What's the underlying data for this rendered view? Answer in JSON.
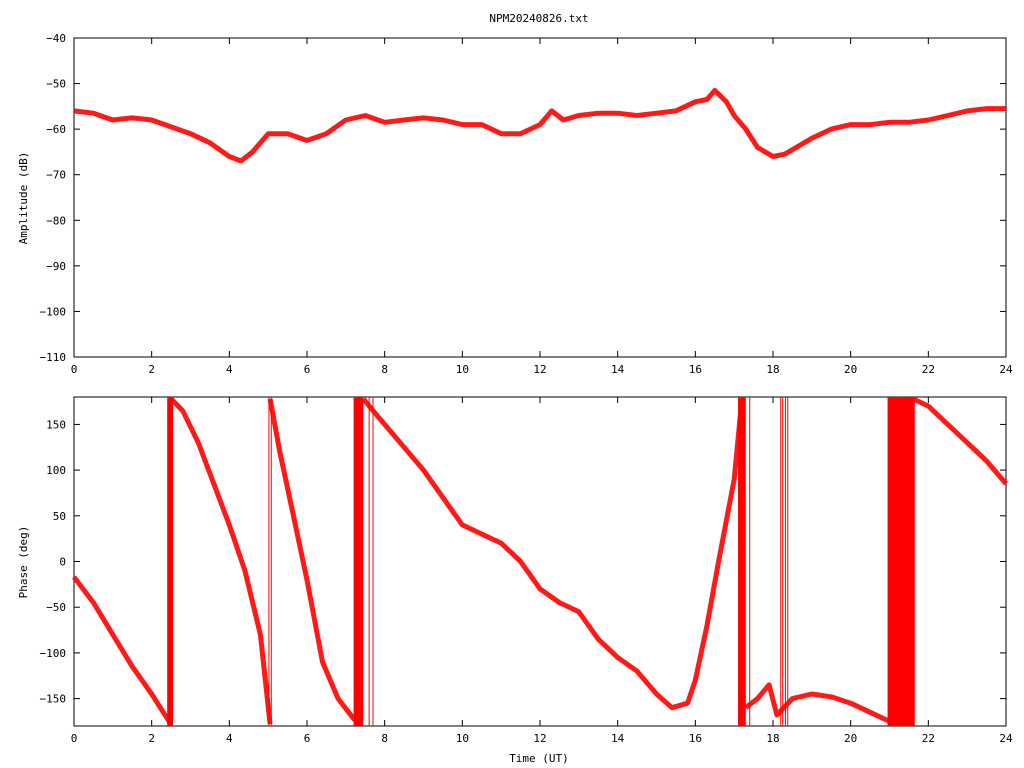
{
  "chart_data": [
    {
      "type": "line",
      "title": "NPM20240826.txt",
      "xlabel": "",
      "ylabel": "Amplitude (dB)",
      "xlim": [
        0,
        24
      ],
      "ylim": [
        -110,
        -40
      ],
      "x_ticks": [
        "0",
        "2",
        "4",
        "6",
        "8",
        "10",
        "12",
        "14",
        "16",
        "18",
        "20",
        "22",
        "24"
      ],
      "y_ticks": [
        "-40",
        "-50",
        "-60",
        "-70",
        "-80",
        "-90",
        "-100",
        "-110"
      ],
      "grid": false,
      "line_color": "#ff0000",
      "series": [
        {
          "x": [
            0,
            0.5,
            1,
            1.5,
            2,
            2.5,
            3,
            3.5,
            4,
            4.3,
            4.6,
            5,
            5.5,
            6,
            6.5,
            7,
            7.5,
            8,
            8.5,
            9,
            9.5,
            10,
            10.5,
            11,
            11.5,
            12,
            12.3,
            12.6,
            13,
            13.5,
            14,
            14.5,
            15,
            15.5,
            16,
            16.3,
            16.5,
            16.8,
            17,
            17.3,
            17.6,
            18,
            18.3,
            18.6,
            19,
            19.5,
            20,
            20.5,
            21,
            21.5,
            22,
            22.5,
            23,
            23.5,
            24
          ],
          "y": [
            -56,
            -56.5,
            -58,
            -57.5,
            -58,
            -59.5,
            -61,
            -63,
            -66,
            -67,
            -65,
            -61,
            -61,
            -62.5,
            -61,
            -58,
            -57,
            -58.5,
            -58,
            -57.5,
            -58,
            -59,
            -59,
            -61,
            -61,
            -59,
            -56,
            -58,
            -57,
            -56.5,
            -56.5,
            -57,
            -56.5,
            -56,
            -54,
            -53.5,
            -51.5,
            -54,
            -57,
            -60,
            -64,
            -66,
            -65.5,
            -64,
            -62,
            -60,
            -59,
            -59,
            -58.5,
            -58.5,
            -58,
            -57,
            -56,
            -55.5,
            -55.5
          ]
        }
      ]
    },
    {
      "type": "line",
      "title": "",
      "xlabel": "Time (UT)",
      "ylabel": "Phase (deg)",
      "xlim": [
        0,
        24
      ],
      "ylim": [
        -180,
        180
      ],
      "x_ticks": [
        "0",
        "2",
        "4",
        "6",
        "8",
        "10",
        "12",
        "14",
        "16",
        "18",
        "20",
        "22",
        "24"
      ],
      "y_ticks": [
        "150",
        "100",
        "50",
        "0",
        "-50",
        "-100",
        "-150"
      ],
      "grid": false,
      "line_color": "#ff0000",
      "series": [
        {
          "segments": [
            {
              "x": [
                0,
                0.5,
                1,
                1.5,
                2,
                2.3,
                2.5
              ],
              "y": [
                -17,
                -45,
                -80,
                -115,
                -145,
                -165,
                -178
              ]
            },
            {
              "x": [
                2.5,
                2.8,
                3.2,
                3.6,
                4,
                4.4,
                4.8,
                5.05
              ],
              "y": [
                178,
                165,
                130,
                85,
                40,
                -10,
                -80,
                -178
              ]
            },
            {
              "x": [
                5.05,
                5.3,
                5.6,
                6,
                6.4,
                6.8,
                7.2,
                7.35
              ],
              "y": [
                178,
                120,
                60,
                -20,
                -110,
                -150,
                -172,
                -178
              ]
            },
            {
              "x": [
                7.45,
                7.8,
                8.5,
                9,
                9.5,
                10,
                10.5,
                11,
                11.5,
                12,
                12.5,
                13,
                13.5,
                14,
                14.5,
                15,
                15.4,
                15.8,
                16,
                16.3,
                16.6,
                17,
                17.2
              ],
              "y": [
                178,
                160,
                125,
                100,
                70,
                40,
                30,
                20,
                0,
                -30,
                -45,
                -55,
                -85,
                -105,
                -120,
                -145,
                -160,
                -155,
                -130,
                -70,
                0,
                90,
                178
              ]
            },
            {
              "x": [
                17.3,
                17.6,
                17.9,
                18.1,
                18.5,
                19,
                19.5,
                20,
                20.5,
                21
              ],
              "y": [
                -160,
                -150,
                -135,
                -168,
                -150,
                -145,
                -148,
                -155,
                -165,
                -175
              ]
            },
            {
              "x": [
                21.6,
                22,
                22.5,
                23,
                23.5,
                24
              ],
              "y": [
                178,
                170,
                150,
                130,
                110,
                85
              ]
            }
          ],
          "dense_wrap_bands": [
            [
              2.4,
              2.55
            ],
            [
              7.2,
              7.45
            ],
            [
              17.1,
              17.3
            ],
            [
              20.95,
              21.65
            ]
          ],
          "wrap_spikes": [
            5.02,
            5.08,
            7.6,
            7.7,
            17.4,
            18.2,
            18.25,
            18.32,
            18.38
          ]
        }
      ]
    }
  ]
}
